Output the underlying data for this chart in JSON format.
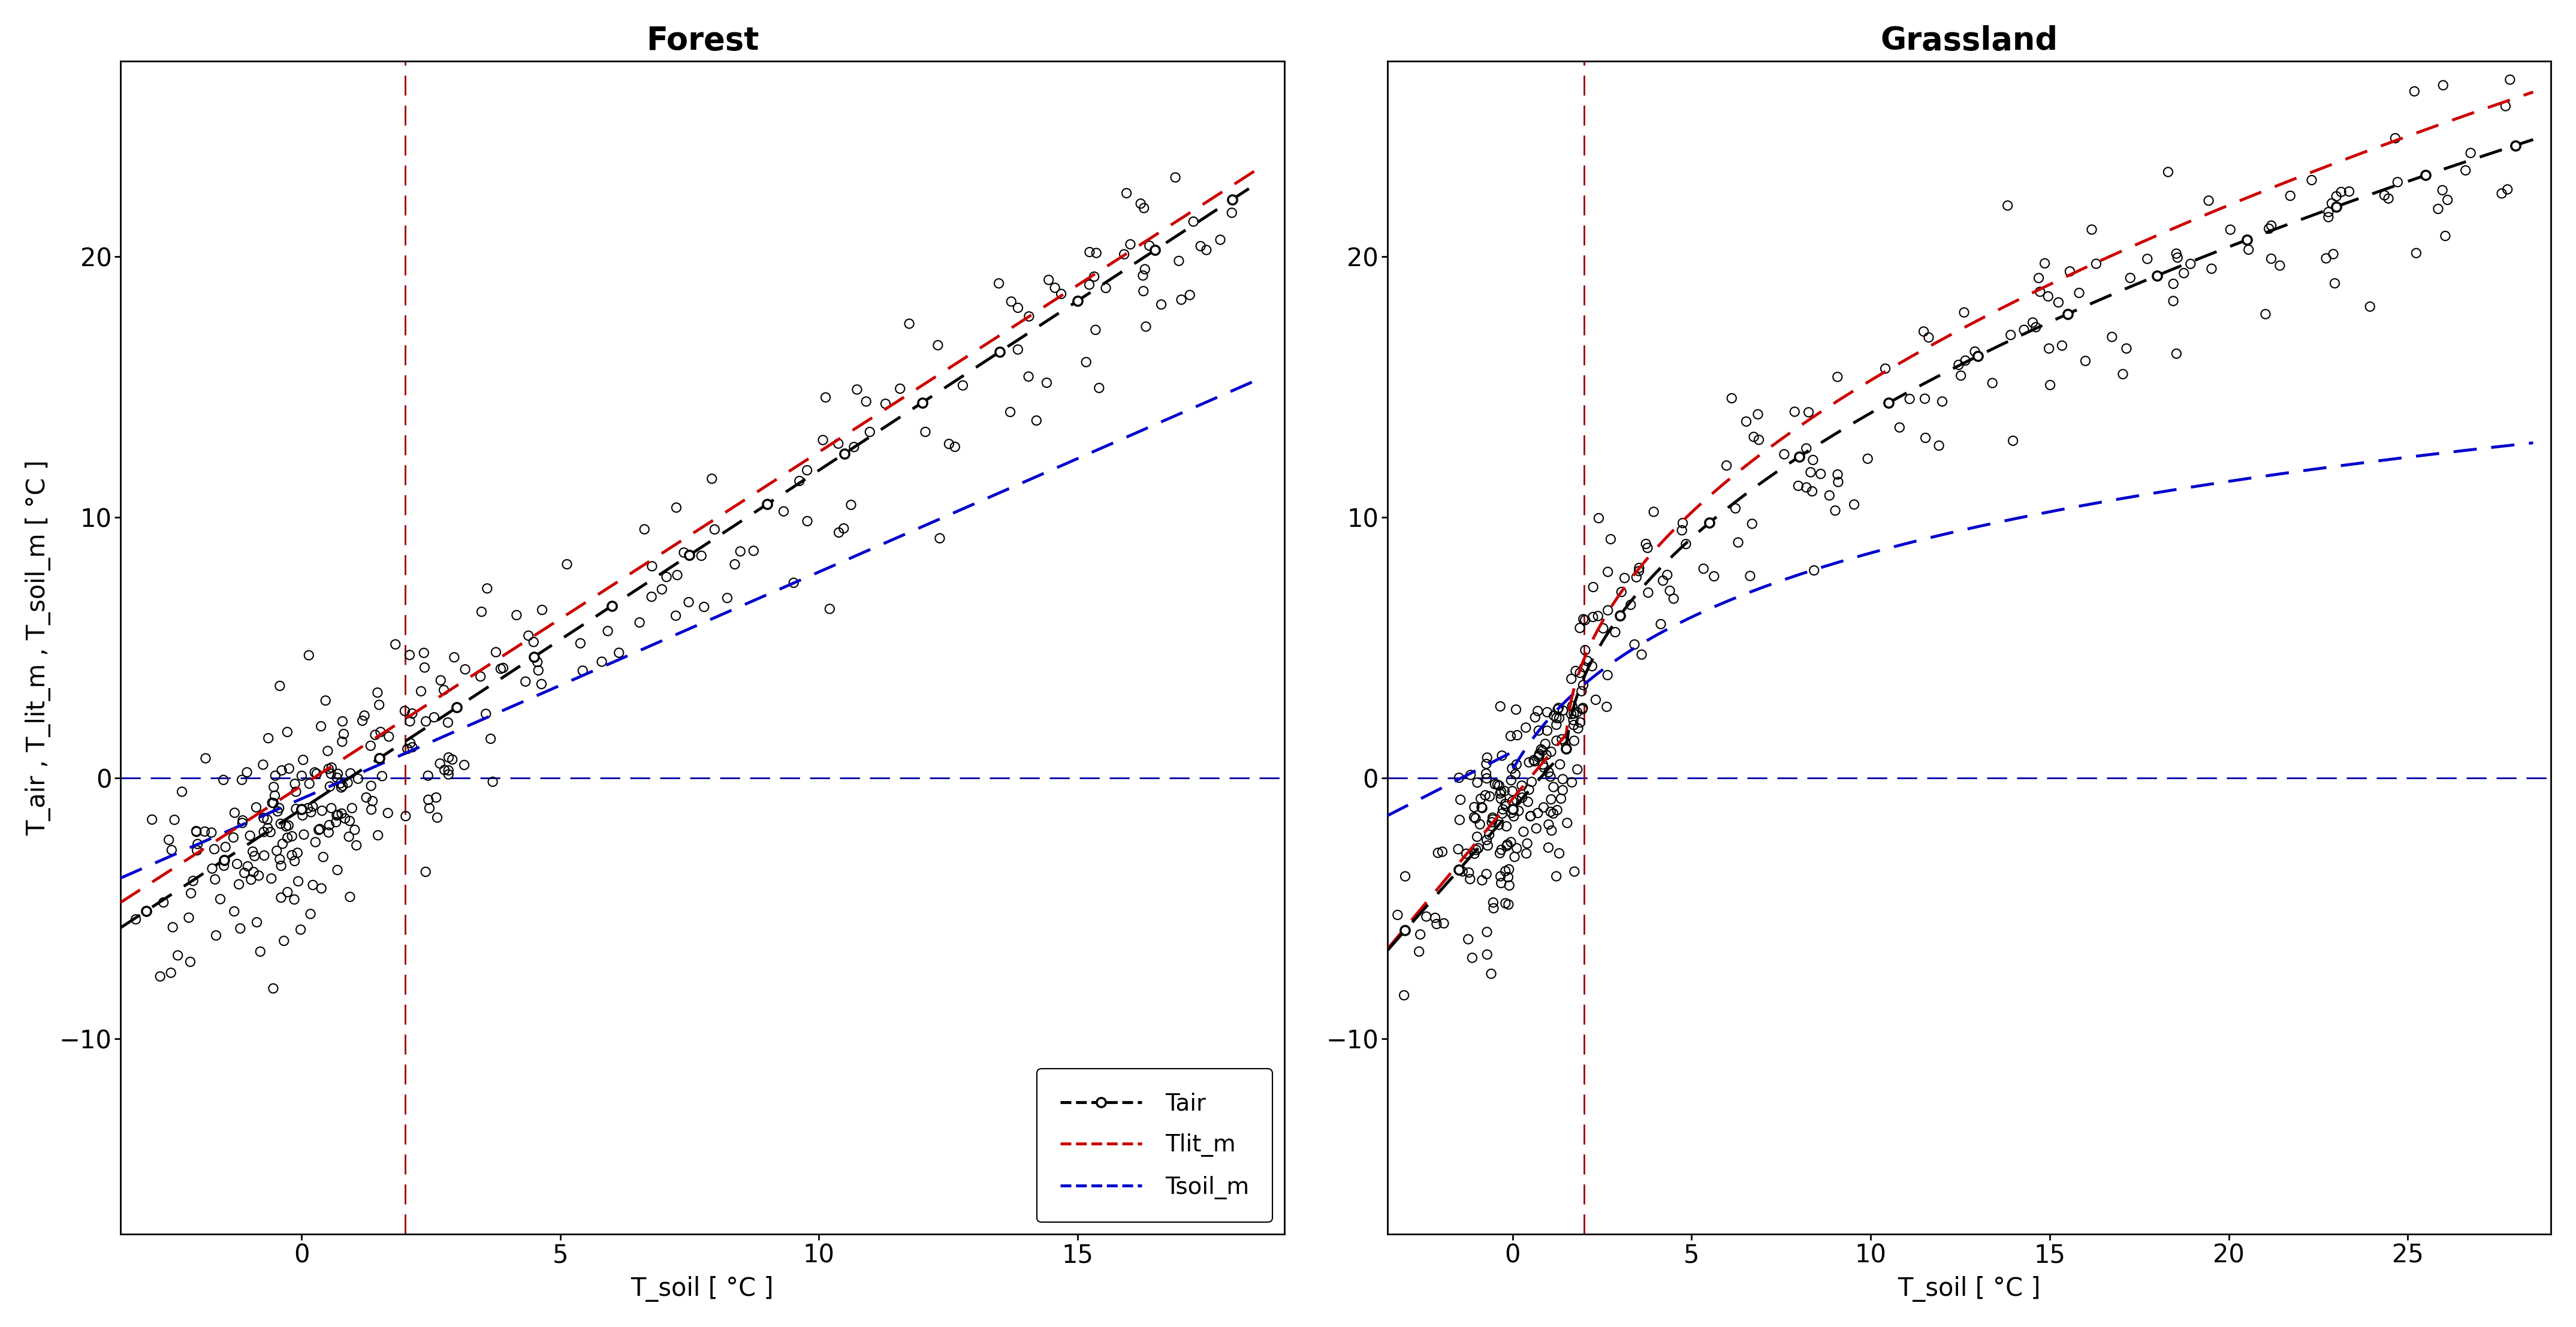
{
  "forest_title": "Forest",
  "grassland_title": "Grassland",
  "xlabel": "T_soil [ °C ]",
  "ylabel": "T_air , T_lit_m , T_soil_m [ °C ]",
  "forest_xlim": [
    -3.5,
    19.0
  ],
  "forest_ylim": [
    -17.5,
    27.5
  ],
  "grassland_xlim": [
    -3.5,
    29.0
  ],
  "grassland_ylim": [
    -17.5,
    27.5
  ],
  "forest_xticks": [
    0,
    5,
    10,
    15
  ],
  "grassland_xticks": [
    0,
    5,
    10,
    15,
    20,
    25
  ],
  "yticks": [
    -10,
    0,
    10,
    20
  ],
  "vline_x": 2.0,
  "hline_y": 0.0,
  "vline_color": "#990000",
  "hline_color": "#0000aa",
  "tair_color": "#000000",
  "tlit_color": "#cc0000",
  "tsoil_color": "#0000cc",
  "legend_labels": [
    "Tair",
    "Tlit_m",
    "Tsoil_m"
  ],
  "font_size": 30,
  "title_font_size": 38,
  "scatter_size": 120,
  "scatter_lw": 1.5,
  "line_lw": 3.5,
  "marker_size": 11
}
